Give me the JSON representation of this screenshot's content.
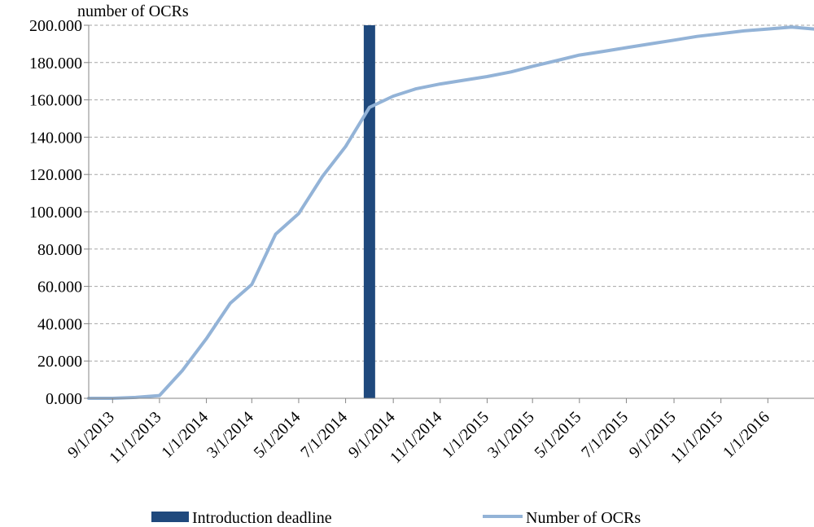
{
  "chart_data": {
    "type": "line",
    "title": "",
    "ylabel": "number of OCRs",
    "xlabel": "",
    "ylim": [
      0,
      200000
    ],
    "yticks": [
      "0.000",
      "20.000",
      "40.000",
      "60.000",
      "80.000",
      "100.000",
      "120.000",
      "140.000",
      "160.000",
      "180.000",
      "200.000"
    ],
    "ytick_values": [
      0,
      20000,
      40000,
      60000,
      80000,
      100000,
      120000,
      140000,
      160000,
      180000,
      200000
    ],
    "xticks": [
      "9/1/2013",
      "11/1/2013",
      "1/1/2014",
      "3/1/2014",
      "5/1/2014",
      "7/1/2014",
      "9/1/2014",
      "11/1/2014",
      "1/1/2015",
      "3/1/2015",
      "5/1/2015",
      "7/1/2015",
      "9/1/2015",
      "11/1/2015",
      "1/1/2016"
    ],
    "xlim": [
      "2013-08-01",
      "2016-03-01"
    ],
    "grid": true,
    "legend_position": "bottom",
    "series": [
      {
        "name": "Number of OCRs",
        "color": "#93b3d7",
        "x": [
          "2013-08-01",
          "2013-09-01",
          "2013-10-01",
          "2013-11-01",
          "2013-12-01",
          "2014-01-01",
          "2014-02-01",
          "2014-03-01",
          "2014-04-01",
          "2014-05-01",
          "2014-06-01",
          "2014-07-01",
          "2014-08-01",
          "2014-09-01",
          "2014-10-01",
          "2014-11-01",
          "2014-12-01",
          "2015-01-01",
          "2015-02-01",
          "2015-03-01",
          "2015-04-01",
          "2015-05-01",
          "2015-06-01",
          "2015-07-01",
          "2015-08-01",
          "2015-09-01",
          "2015-10-01",
          "2015-11-01",
          "2015-12-01",
          "2016-01-01",
          "2016-02-01",
          "2016-03-01"
        ],
        "values": [
          0,
          0,
          500,
          1500,
          15000,
          32000,
          51000,
          61000,
          88000,
          99000,
          119000,
          135000,
          156000,
          162000,
          166000,
          168500,
          170500,
          172500,
          175000,
          178000,
          181000,
          184000,
          186000,
          188000,
          190000,
          192000,
          194000,
          195500,
          197000,
          198000,
          199000,
          198000
        ]
      }
    ],
    "marker": {
      "name": "Introduction deadline",
      "x": "2014-08-01",
      "color": "#1f497d"
    }
  }
}
